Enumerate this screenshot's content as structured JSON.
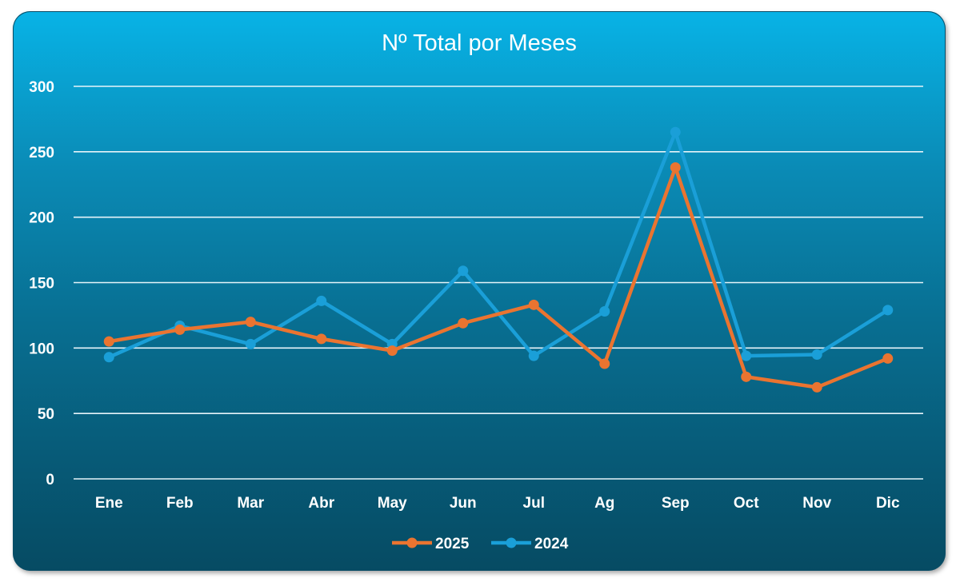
{
  "chart_data": {
    "type": "line",
    "title": "Nº Total por Meses",
    "xlabel": "",
    "ylabel": "",
    "categories": [
      "Ene",
      "Feb",
      "Mar",
      "Abr",
      "May",
      "Jun",
      "Jul",
      "Ag",
      "Sep",
      "Oct",
      "Nov",
      "Dic"
    ],
    "ylim": [
      0,
      300
    ],
    "yticks": [
      "0",
      "50",
      "100",
      "150",
      "200",
      "250",
      "300"
    ],
    "grid": true,
    "legend_position": "bottom",
    "series": [
      {
        "name": "2025",
        "color": "#ea7430",
        "values": [
          105,
          114,
          120,
          107,
          98,
          119,
          133,
          88,
          238,
          78,
          70,
          92
        ]
      },
      {
        "name": "2024",
        "color": "#1a9fd8",
        "values": [
          93,
          117,
          103,
          136,
          103,
          159,
          94,
          128,
          265,
          94,
          95,
          129
        ]
      }
    ]
  }
}
